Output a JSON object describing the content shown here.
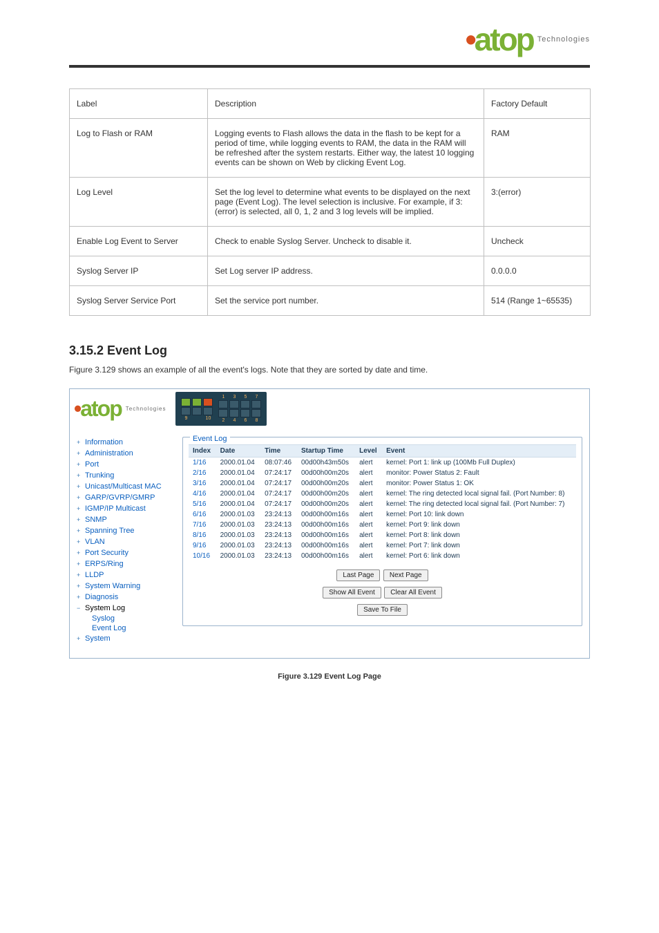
{
  "brand": {
    "name": "atop",
    "sub": "Technologies"
  },
  "spec": {
    "header": [
      "Label",
      "Description",
      "Factory Default"
    ],
    "rows": [
      {
        "label": "Log to Flash or RAM",
        "desc": "Logging events to Flash allows the data in the flash to be kept for a period of time, while logging events to RAM, the data in the RAM will be refreshed after the system restarts. Either way, the latest 10 logging events can be shown on Web by clicking Event Log.",
        "def": "RAM"
      },
      {
        "label": "Log Level",
        "desc": "Set the log level to determine what events to be displayed on the next page (Event Log). The level selection is inclusive. For example, if 3: (error) is selected, all 0, 1, 2 and 3 log levels will be implied.",
        "def": "3:(error)"
      },
      {
        "label": "Enable Log Event to Server",
        "desc": "Check to enable Syslog Server. Uncheck to disable it.",
        "def": "Uncheck"
      },
      {
        "label": "Syslog Server IP",
        "desc": "Set Log server IP address.",
        "def": "0.0.0.0"
      },
      {
        "label": "Syslog Server Service Port",
        "desc": "Set the service port number.",
        "def": "514 (Range 1~65535)"
      }
    ]
  },
  "section": {
    "title": "3.15.2 Event Log",
    "desc": "Figure 3.129 shows an example of all the event's logs. Note that they are sorted by date and time."
  },
  "nav": [
    {
      "label": "Information",
      "type": "plus"
    },
    {
      "label": "Administration",
      "type": "plus"
    },
    {
      "label": "Port",
      "type": "plus"
    },
    {
      "label": "Trunking",
      "type": "plus"
    },
    {
      "label": "Unicast/Multicast MAC",
      "type": "plus"
    },
    {
      "label": "GARP/GVRP/GMRP",
      "type": "plus"
    },
    {
      "label": "IGMP/IP Multicast",
      "type": "plus"
    },
    {
      "label": "SNMP",
      "type": "plus"
    },
    {
      "label": "Spanning Tree",
      "type": "plus"
    },
    {
      "label": "VLAN",
      "type": "plus"
    },
    {
      "label": "Port Security",
      "type": "plus"
    },
    {
      "label": "ERPS/Ring",
      "type": "plus"
    },
    {
      "label": "LLDP",
      "type": "plus"
    },
    {
      "label": "System Warning",
      "type": "plus"
    },
    {
      "label": "Diagnosis",
      "type": "plus"
    },
    {
      "label": "System Log",
      "type": "minus",
      "sub": [
        "Syslog",
        "Event Log"
      ]
    },
    {
      "label": "System",
      "type": "plus"
    }
  ],
  "eventlog": {
    "legend": "Event Log",
    "columns": [
      "Index",
      "Date",
      "Time",
      "Startup Time",
      "Level",
      "Event"
    ],
    "rows": [
      {
        "idx": "1/16",
        "date": "2000.01.04",
        "time": "08:07:46",
        "startup": "00d00h43m50s",
        "level": "alert",
        "event": "kernel: Port 1: link up (100Mb Full Duplex)"
      },
      {
        "idx": "2/16",
        "date": "2000.01.04",
        "time": "07:24:17",
        "startup": "00d00h00m20s",
        "level": "alert",
        "event": "monitor: Power Status 2: Fault"
      },
      {
        "idx": "3/16",
        "date": "2000.01.04",
        "time": "07:24:17",
        "startup": "00d00h00m20s",
        "level": "alert",
        "event": "monitor: Power Status 1: OK"
      },
      {
        "idx": "4/16",
        "date": "2000.01.04",
        "time": "07:24:17",
        "startup": "00d00h00m20s",
        "level": "alert",
        "event": "kernel: The ring detected local signal fail. (Port Number: 8)"
      },
      {
        "idx": "5/16",
        "date": "2000.01.04",
        "time": "07:24:17",
        "startup": "00d00h00m20s",
        "level": "alert",
        "event": "kernel: The ring detected local signal fail. (Port Number: 7)"
      },
      {
        "idx": "6/16",
        "date": "2000.01.03",
        "time": "23:24:13",
        "startup": "00d00h00m16s",
        "level": "alert",
        "event": "kernel: Port 10: link down"
      },
      {
        "idx": "7/16",
        "date": "2000.01.03",
        "time": "23:24:13",
        "startup": "00d00h00m16s",
        "level": "alert",
        "event": "kernel: Port 9: link down"
      },
      {
        "idx": "8/16",
        "date": "2000.01.03",
        "time": "23:24:13",
        "startup": "00d00h00m16s",
        "level": "alert",
        "event": "kernel: Port 8: link down"
      },
      {
        "idx": "9/16",
        "date": "2000.01.03",
        "time": "23:24:13",
        "startup": "00d00h00m16s",
        "level": "alert",
        "event": "kernel: Port 7: link down"
      },
      {
        "idx": "10/16",
        "date": "2000.01.03",
        "time": "23:24:13",
        "startup": "00d00h00m16s",
        "level": "alert",
        "event": "kernel: Port 6: link down"
      }
    ],
    "buttons": {
      "last": "Last Page",
      "next": "Next Page",
      "showall": "Show All Event",
      "clear": "Clear All Event",
      "save": "Save To File"
    }
  },
  "caption": "Figure 3.129 Event Log Page"
}
